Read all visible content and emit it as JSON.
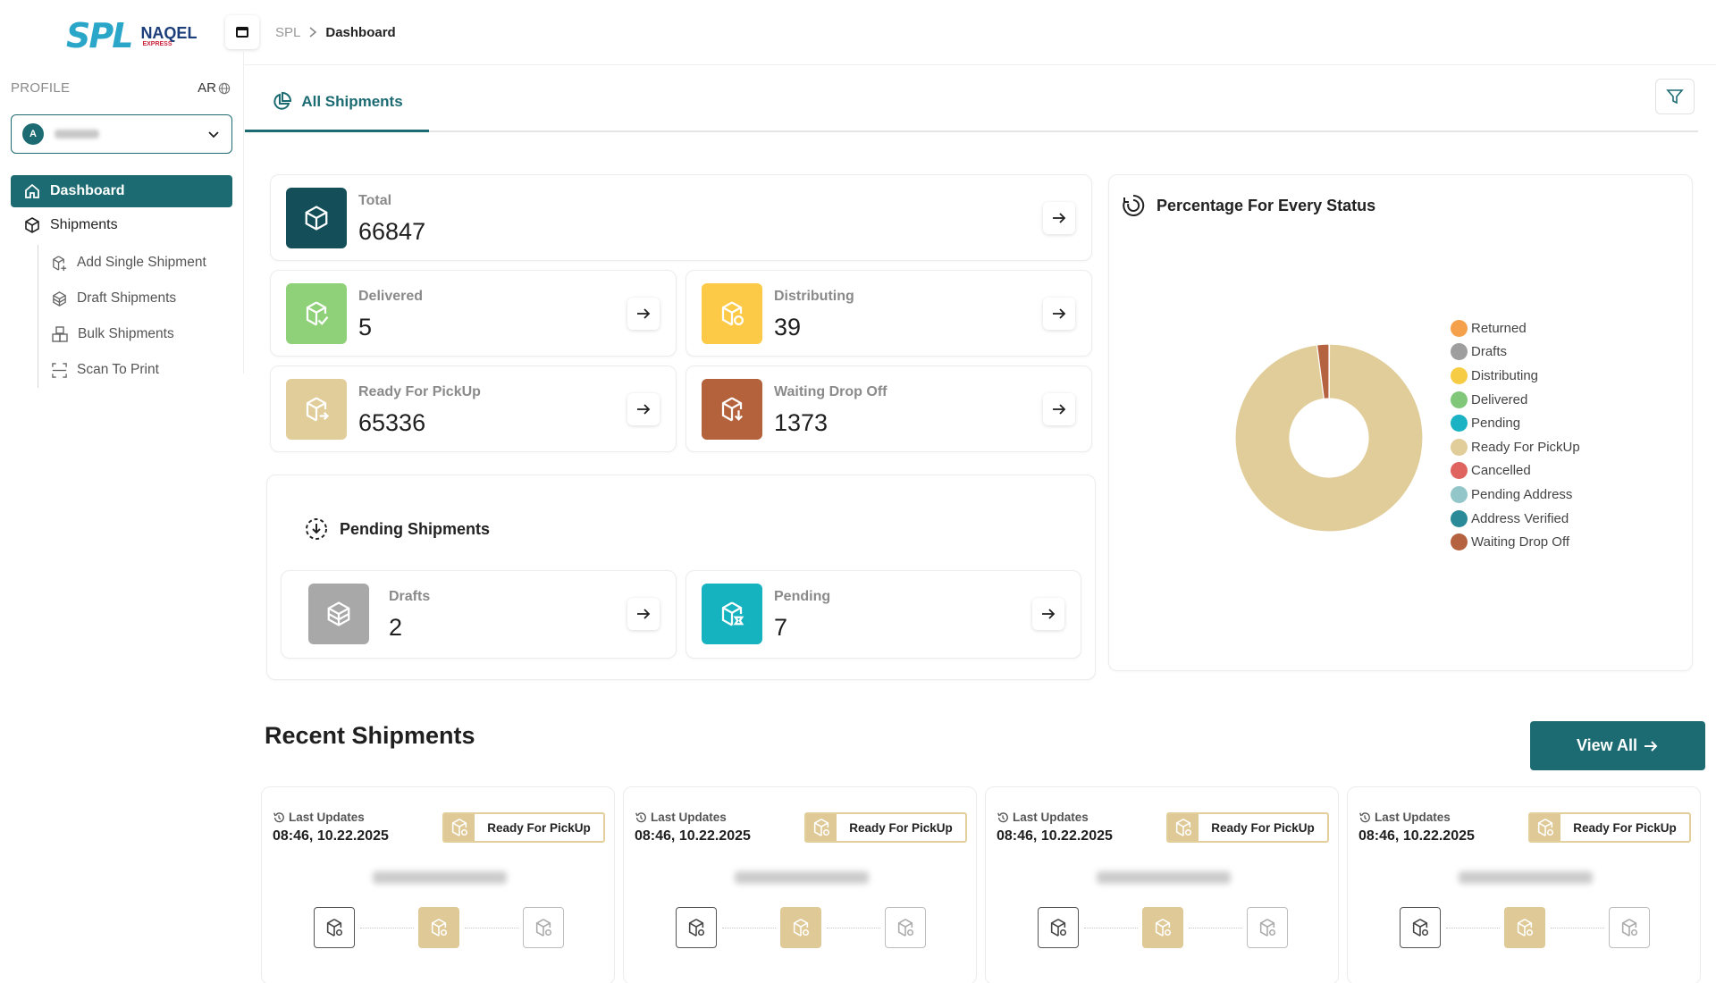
{
  "sidebar": {
    "profile_label": "PROFILE",
    "lang_label": "AR",
    "profile_avatar_initial": "A",
    "nav": {
      "dashboard": "Dashboard",
      "shipments": "Shipments",
      "sub": [
        "Add Single Shipment",
        "Draft Shipments",
        "Bulk Shipments",
        "Scan To Print"
      ]
    }
  },
  "logo": {
    "spl": "SPL",
    "naqel": "NAQEL",
    "naqel_sub": "EXPRESS"
  },
  "breadcrumb": {
    "root": "SPL",
    "current": "Dashboard"
  },
  "tabs": {
    "all_shipments": "All Shipments"
  },
  "stats": {
    "total": {
      "label": "Total",
      "value": "66847"
    },
    "delivered": {
      "label": "Delivered",
      "value": "5"
    },
    "distributing": {
      "label": "Distributing",
      "value": "39"
    },
    "ready": {
      "label": "Ready For PickUp",
      "value": "65336"
    },
    "waiting": {
      "label": "Waiting Drop Off",
      "value": "1373"
    }
  },
  "pending": {
    "title": "Pending Shipments",
    "drafts": {
      "label": "Drafts",
      "value": "2"
    },
    "pending": {
      "label": "Pending",
      "value": "7"
    }
  },
  "chart_title": "Percentage For Every Status",
  "chart_data": {
    "type": "pie",
    "donut": true,
    "categories": [
      "Returned",
      "Drafts",
      "Distributing",
      "Delivered",
      "Pending",
      "Ready For PickUp",
      "Cancelled",
      "Pending Address",
      "Address Verified",
      "Waiting Drop Off"
    ],
    "values": [
      0,
      2,
      39,
      5,
      7,
      65336,
      0,
      0,
      0,
      1373
    ],
    "colors": [
      "#f5a04a",
      "#9e9e9e",
      "#f7cc45",
      "#80c77a",
      "#1bb3c4",
      "#e1cd99",
      "#df6460",
      "#92c6c8",
      "#2a8a97",
      "#b4623f"
    ],
    "legend_position": "right"
  },
  "recent": {
    "title": "Recent Shipments",
    "view_all": "View All",
    "items": [
      {
        "last_label": "Last Updates",
        "date": "08:46, 10.22.2025",
        "status": "Ready For PickUp"
      },
      {
        "last_label": "Last Updates",
        "date": "08:46, 10.22.2025",
        "status": "Ready For PickUp"
      },
      {
        "last_label": "Last Updates",
        "date": "08:46, 10.22.2025",
        "status": "Ready For PickUp"
      },
      {
        "last_label": "Last Updates",
        "date": "08:46, 10.22.2025",
        "status": "Ready For PickUp"
      }
    ]
  },
  "colors": {
    "primary": "#1c6b72",
    "ready": "#e1cd99",
    "delivered": "#8fd179",
    "distributing": "#fdca48",
    "waiting": "#b3623c",
    "drafts": "#a8a8a8",
    "pending": "#15b3bf"
  }
}
